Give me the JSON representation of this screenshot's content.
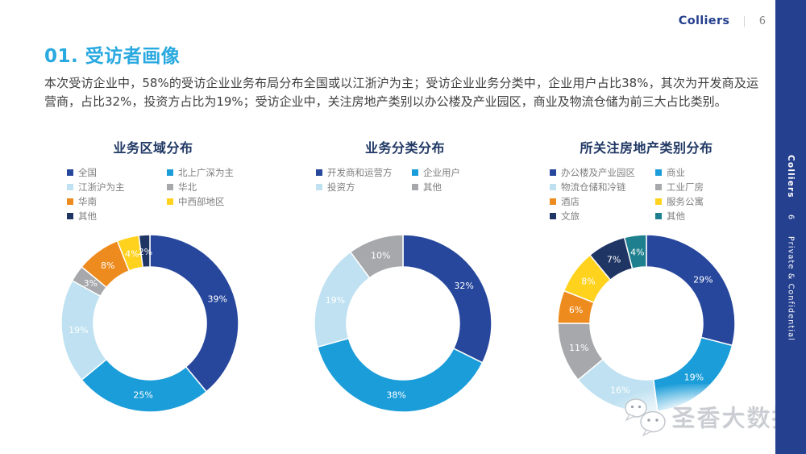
{
  "header": {
    "brand": "Colliers",
    "divider": "|",
    "page_number": "6"
  },
  "sidebar": {
    "brand": "Colliers",
    "page_number": "6",
    "confidential": "Private & Confidential"
  },
  "page_title": "01. 受访者画像",
  "intro": "本次受访企业中，58%的受访企业业务布局分布全国或以江浙沪为主；受访企业业务分类中，企业用户占比38%，其次为开发商及运营商，占比32%，投资方占比为19%；受访企业中，关注房地产类别以办公楼及产业园区，商业及物流仓储为前三大占比类别。",
  "watermark": {
    "icon": "wechat-icon",
    "text": "圣香大数据"
  },
  "colors": {
    "brand_blue": "#25408F",
    "heading_cyan": "#29A9E0",
    "chart_title_navy": "#203864",
    "legend_text": "#7F7F7F",
    "body_text": "#3F3F3F",
    "slice_label": "#FFFFFF"
  },
  "chart_data": [
    {
      "type": "pie",
      "donut": true,
      "title": "业务区域分布",
      "legend_position": "top",
      "labels": [
        "全国",
        "北上广深为主",
        "江浙沪为主",
        "华北",
        "华南",
        "中西部地区",
        "其他"
      ],
      "values": [
        39,
        25,
        19,
        3,
        8,
        4,
        2
      ],
      "colors": [
        "#27479D",
        "#1B9DD9",
        "#BFE1F1",
        "#A6A8AB",
        "#EE8B1E",
        "#FFD21E",
        "#1F3564"
      ]
    },
    {
      "type": "pie",
      "donut": true,
      "title": "业务分类分布",
      "legend_position": "top",
      "labels": [
        "开发商和运营方",
        "企业用户",
        "投资方",
        "其他"
      ],
      "values": [
        32,
        38,
        19,
        10
      ],
      "colors": [
        "#27479D",
        "#1B9DD9",
        "#BFE1F1",
        "#A6A8AB"
      ]
    },
    {
      "type": "pie",
      "donut": true,
      "title": "所关注房地产类别分布",
      "legend_position": "top",
      "labels": [
        "办公楼及产业园区",
        "商业",
        "物流仓储和冷链",
        "工业厂房",
        "酒店",
        "服务公寓",
        "文旅",
        "其他"
      ],
      "values": [
        29,
        19,
        16,
        11,
        6,
        8,
        7,
        4
      ],
      "colors": [
        "#27479D",
        "#1B9DD9",
        "#BFE1F1",
        "#A6A8AB",
        "#EE8B1E",
        "#FFD21E",
        "#1F3564",
        "#1E808F"
      ]
    }
  ]
}
